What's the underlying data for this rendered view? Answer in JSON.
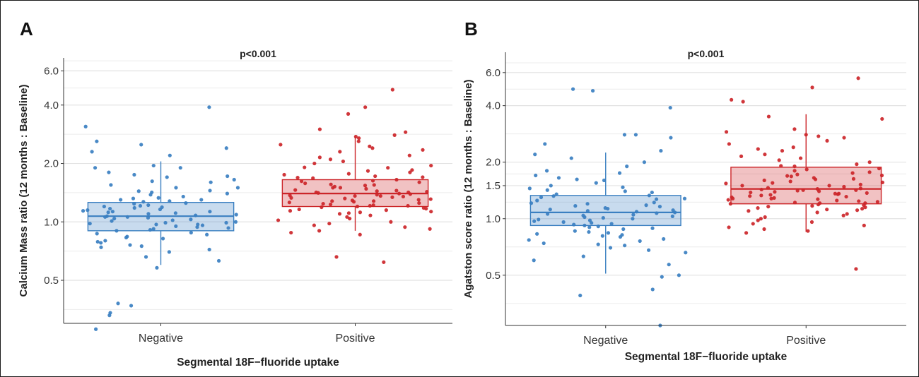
{
  "figure": {
    "panels": [
      "A",
      "B"
    ]
  },
  "chart_data": [
    {
      "type": "box",
      "panel": "A",
      "annotation": "p<0.001",
      "xlabel": "Segmental 18F−fluoride uptake",
      "ylabel": "Calcium Mass ratio (12 months : Baseline)",
      "yscale": "log",
      "ylim": [
        0.3,
        7.0
      ],
      "yticks": [
        0.5,
        1.0,
        2.0,
        4.0,
        6.0
      ],
      "ytick_labels": [
        "0.5",
        "1.0",
        "2.0",
        "4.0",
        "6.0"
      ],
      "grid": "horizontal",
      "categories": [
        "Negative",
        "Positive"
      ],
      "boxes": [
        {
          "category": "Negative",
          "color": "#3a7fc1",
          "whisker_low": 0.6,
          "q1": 0.9,
          "median": 1.07,
          "q3": 1.26,
          "whisker_high": 2.05
        },
        {
          "category": "Positive",
          "color": "#cc2529",
          "whisker_low": 0.9,
          "q1": 1.2,
          "median": 1.4,
          "q3": 1.65,
          "whisker_high": 2.75
        }
      ],
      "points": {
        "Negative": [
          2.4,
          2.3,
          2.2,
          2.5,
          1.95,
          1.9,
          1.8,
          1.75,
          1.7,
          1.65,
          1.6,
          1.55,
          1.5,
          1.45,
          1.42,
          1.4,
          1.38,
          1.35,
          1.32,
          1.3,
          1.28,
          1.25,
          1.22,
          1.2,
          1.18,
          1.16,
          1.14,
          1.12,
          1.1,
          1.09,
          1.08,
          1.06,
          1.05,
          1.04,
          1.02,
          1.0,
          0.99,
          0.97,
          0.96,
          0.95,
          0.93,
          0.92,
          0.9,
          0.88,
          0.86,
          0.84,
          0.82,
          0.8,
          0.78,
          0.76,
          0.74,
          0.72,
          0.7,
          0.66,
          0.63,
          0.58,
          0.38,
          0.37,
          0.34,
          0.33,
          0.28,
          3.9,
          3.1,
          2.6,
          1.9,
          1.5,
          1.3,
          1.27,
          1.24,
          1.21,
          1.19,
          1.17,
          1.15,
          1.13,
          1.11,
          1.07,
          1.03,
          1.01,
          0.98,
          0.94,
          0.91,
          0.87,
          0.83,
          0.79,
          0.75,
          1.33,
          1.44,
          1.62,
          1.72,
          1.13,
          1.06,
          0.99,
          0.97
        ],
        "Positive": [
          4.8,
          3.9,
          3.6,
          3.0,
          2.9,
          2.8,
          2.75,
          2.7,
          2.6,
          2.5,
          2.45,
          2.4,
          2.3,
          2.2,
          2.1,
          2.05,
          2.0,
          1.95,
          1.9,
          1.85,
          1.8,
          1.75,
          1.72,
          1.7,
          1.68,
          1.65,
          1.62,
          1.6,
          1.58,
          1.56,
          1.54,
          1.52,
          1.5,
          1.48,
          1.46,
          1.44,
          1.43,
          1.42,
          1.41,
          1.4,
          1.39,
          1.38,
          1.37,
          1.36,
          1.35,
          1.34,
          1.33,
          1.32,
          1.31,
          1.3,
          1.29,
          1.28,
          1.27,
          1.26,
          1.25,
          1.24,
          1.23,
          1.22,
          1.21,
          1.2,
          1.19,
          1.18,
          1.17,
          1.16,
          1.15,
          1.14,
          1.13,
          1.12,
          1.1,
          1.08,
          1.06,
          1.04,
          1.02,
          1.0,
          0.98,
          0.96,
          0.94,
          0.92,
          0.9,
          0.88,
          0.86,
          0.66,
          0.62,
          1.45,
          1.55,
          1.63,
          1.69,
          1.77,
          1.83,
          1.91,
          2.15,
          2.35,
          1.28,
          1.36,
          1.42,
          1.5,
          1.21,
          1.11
        ]
      }
    },
    {
      "type": "box",
      "panel": "B",
      "annotation": "p<0.001",
      "xlabel": "Segmental 18F−fluoride uptake",
      "ylabel": "Agatston score ratio (12 months : Baseline)",
      "yscale": "log",
      "ylim": [
        0.27,
        7.7
      ],
      "yticks": [
        0.5,
        1.0,
        1.5,
        2.0,
        4.0,
        6.0
      ],
      "ytick_labels": [
        "0.5",
        "1.0",
        "1.5",
        "2.0",
        "4.0",
        "6.0"
      ],
      "grid": "horizontal",
      "categories": [
        "Negative",
        "Positive"
      ],
      "boxes": [
        {
          "category": "Negative",
          "color": "#3a7fc1",
          "whisker_low": 0.51,
          "q1": 0.92,
          "median": 1.08,
          "q3": 1.33,
          "whisker_high": 2.25
        },
        {
          "category": "Positive",
          "color": "#cc2529",
          "whisker_low": 0.85,
          "q1": 1.2,
          "median": 1.44,
          "q3": 1.88,
          "whisker_high": 3.6
        }
      ],
      "points": {
        "Negative": [
          4.8,
          4.9,
          3.9,
          2.8,
          2.7,
          2.8,
          2.5,
          2.3,
          2.2,
          2.1,
          2.0,
          1.9,
          1.8,
          1.7,
          1.65,
          1.6,
          1.55,
          1.5,
          1.45,
          1.42,
          1.4,
          1.38,
          1.35,
          1.32,
          1.3,
          1.28,
          1.25,
          1.22,
          1.2,
          1.18,
          1.16,
          1.14,
          1.12,
          1.1,
          1.09,
          1.08,
          1.06,
          1.05,
          1.04,
          1.02,
          1.0,
          0.99,
          0.97,
          0.96,
          0.95,
          0.93,
          0.92,
          0.9,
          0.88,
          0.86,
          0.84,
          0.82,
          0.8,
          0.78,
          0.76,
          0.74,
          0.72,
          0.7,
          0.66,
          0.63,
          0.6,
          0.57,
          0.5,
          0.49,
          0.42,
          0.39,
          0.27,
          1.33,
          1.27,
          1.21,
          1.17,
          1.13,
          1.07,
          1.03,
          0.98,
          0.94,
          0.89,
          0.85,
          0.81,
          0.77,
          0.73,
          0.68,
          1.47,
          1.62,
          1.75,
          1.11,
          1.01,
          0.91,
          0.83
        ],
        "Positive": [
          5.6,
          5.0,
          4.3,
          4.2,
          3.5,
          3.4,
          3.0,
          2.9,
          2.8,
          2.75,
          2.7,
          2.6,
          2.5,
          2.4,
          2.3,
          2.2,
          2.1,
          2.05,
          2.0,
          1.95,
          1.9,
          1.85,
          1.8,
          1.75,
          1.72,
          1.7,
          1.68,
          1.65,
          1.62,
          1.6,
          1.58,
          1.56,
          1.54,
          1.52,
          1.5,
          1.48,
          1.46,
          1.44,
          1.43,
          1.42,
          1.41,
          1.4,
          1.39,
          1.38,
          1.37,
          1.36,
          1.35,
          1.34,
          1.33,
          1.32,
          1.31,
          1.3,
          1.29,
          1.28,
          1.27,
          1.26,
          1.25,
          1.24,
          1.23,
          1.22,
          1.21,
          1.2,
          1.19,
          1.18,
          1.17,
          1.16,
          1.15,
          1.14,
          1.13,
          1.12,
          1.1,
          1.08,
          1.06,
          1.04,
          1.02,
          1.0,
          0.98,
          0.96,
          0.94,
          0.92,
          0.9,
          0.88,
          0.86,
          0.84,
          0.54,
          1.45,
          1.55,
          1.63,
          1.69,
          1.77,
          1.83,
          1.91,
          2.15,
          2.35,
          1.28,
          1.36,
          1.42,
          1.5,
          1.21,
          1.11
        ]
      }
    }
  ]
}
